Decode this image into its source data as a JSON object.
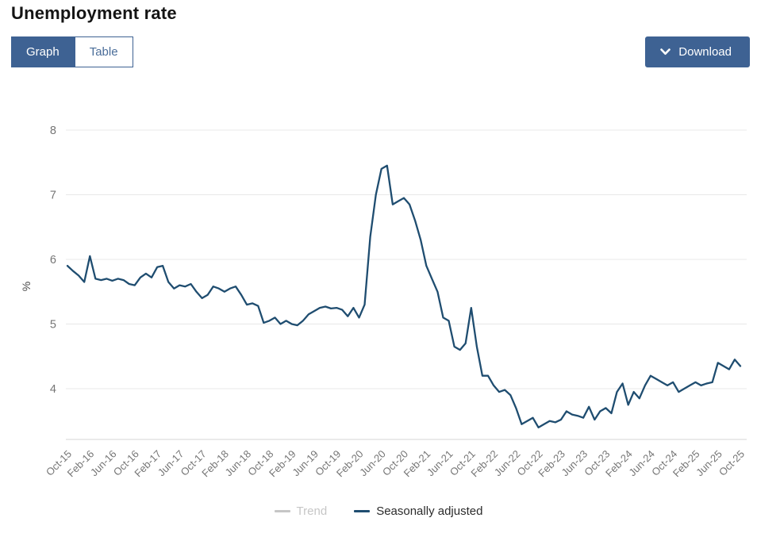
{
  "page": {
    "title": "Unemployment rate"
  },
  "toolbar": {
    "view_toggle": {
      "graph_label": "Graph",
      "table_label": "Table",
      "active": "Graph"
    },
    "download": {
      "label": "Download",
      "icon": "chevron-down-icon"
    }
  },
  "colors": {
    "accent_blue": "#3e6293",
    "line_blue": "#1f4d70",
    "trend_gray": "#c6c6c6",
    "gridline": "#e8e8e8",
    "axis_line": "#d6d6d6",
    "tick_text": "#757575"
  },
  "chart_data": {
    "type": "line",
    "title": "Unemployment rate",
    "ylabel": "%",
    "yticks": [
      4,
      5,
      6,
      7,
      8
    ],
    "ylim": [
      3.2,
      8.3
    ],
    "grid": "horizontal",
    "x_frequency": "monthly",
    "x_range": [
      "Oct-15",
      "Oct-25"
    ],
    "x_tick_month_interval": 4,
    "x_tick_labels": [
      "Oct-15",
      "Feb-16",
      "Jun-16",
      "Oct-16",
      "Feb-17",
      "Jun-17",
      "Oct-17",
      "Feb-18",
      "Jun-18",
      "Oct-18",
      "Feb-19",
      "Jun-19",
      "Oct-19",
      "Feb-20",
      "Jun-20",
      "Oct-20",
      "Feb-21",
      "Jun-21",
      "Oct-21",
      "Feb-22",
      "Jun-22",
      "Oct-22",
      "Feb-23",
      "Jun-23",
      "Oct-23",
      "Feb-24",
      "Jun-24",
      "Oct-24",
      "Feb-25",
      "Jun-25",
      "Oct-25"
    ],
    "legend": [
      {
        "label": "Trend",
        "active": false,
        "color": "#c6c6c6"
      },
      {
        "label": "Seasonally adjusted",
        "active": true,
        "color": "#1f4d70"
      }
    ],
    "series": [
      {
        "name": "Trend",
        "color": "#c6c6c6",
        "visible": false,
        "values": []
      },
      {
        "name": "Seasonally adjusted",
        "color": "#1f4d70",
        "visible": true,
        "values": [
          5.9,
          5.82,
          5.75,
          5.65,
          6.05,
          5.7,
          5.68,
          5.7,
          5.67,
          5.7,
          5.68,
          5.62,
          5.6,
          5.72,
          5.78,
          5.72,
          5.88,
          5.9,
          5.65,
          5.55,
          5.6,
          5.58,
          5.62,
          5.5,
          5.4,
          5.45,
          5.58,
          5.55,
          5.5,
          5.55,
          5.58,
          5.45,
          5.3,
          5.32,
          5.28,
          5.02,
          5.05,
          5.1,
          5.0,
          5.05,
          5.0,
          4.98,
          5.05,
          5.15,
          5.2,
          5.25,
          5.27,
          5.24,
          5.25,
          5.22,
          5.12,
          5.25,
          5.1,
          5.3,
          6.35,
          7.0,
          7.4,
          7.45,
          6.85,
          6.9,
          6.95,
          6.85,
          6.6,
          6.3,
          5.9,
          5.7,
          5.5,
          5.1,
          5.05,
          4.65,
          4.6,
          4.7,
          5.25,
          4.65,
          4.2,
          4.2,
          4.05,
          3.95,
          3.98,
          3.9,
          3.7,
          3.45,
          3.5,
          3.55,
          3.4,
          3.45,
          3.5,
          3.48,
          3.52,
          3.65,
          3.6,
          3.58,
          3.55,
          3.72,
          3.52,
          3.65,
          3.7,
          3.62,
          3.95,
          4.08,
          3.75,
          3.95,
          3.85,
          4.05,
          4.2,
          4.15,
          4.1,
          4.05,
          4.1,
          3.95,
          4.0,
          4.05,
          4.1,
          4.05,
          4.08,
          4.1,
          4.4,
          4.35,
          4.3,
          4.45,
          4.35
        ]
      }
    ]
  }
}
